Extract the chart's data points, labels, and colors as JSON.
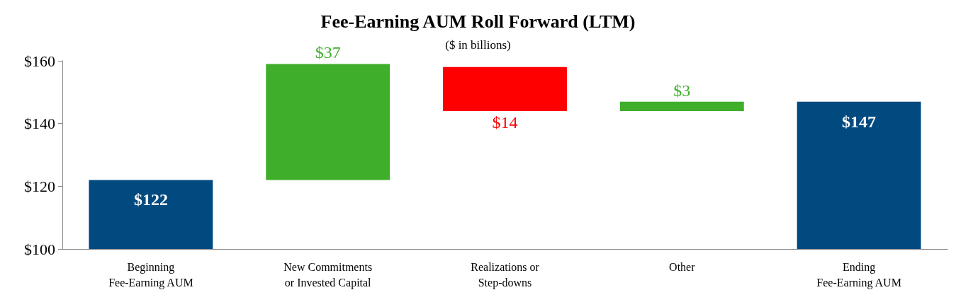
{
  "chart_data": {
    "type": "bar",
    "title": "Fee-Earning AUM Roll Forward (LTM)",
    "subtitle": "($ in billions)",
    "categories": [
      "Beginning\nFee-Earning AUM",
      "New Commitments\nor Invested Capital",
      "Realizations or\nStep-downs",
      "Other",
      "Ending\nFee-Earning AUM"
    ],
    "values": [
      122,
      37,
      -14,
      3,
      147
    ],
    "base": [
      null,
      122,
      158,
      144,
      null
    ],
    "colors": [
      "#004a80",
      "#3fae2a",
      "#ff0000",
      "#3fae2a",
      "#004a80"
    ],
    "value_labels": [
      "$122",
      "$37",
      "$14",
      "$3",
      "$147"
    ],
    "ylim": [
      100,
      160
    ],
    "yticks": [
      {
        "value": 100,
        "label": "$100"
      },
      {
        "value": 120,
        "label": "$120"
      },
      {
        "value": 140,
        "label": "$140"
      },
      {
        "value": 160,
        "label": "$160"
      }
    ],
    "grid": false
  }
}
